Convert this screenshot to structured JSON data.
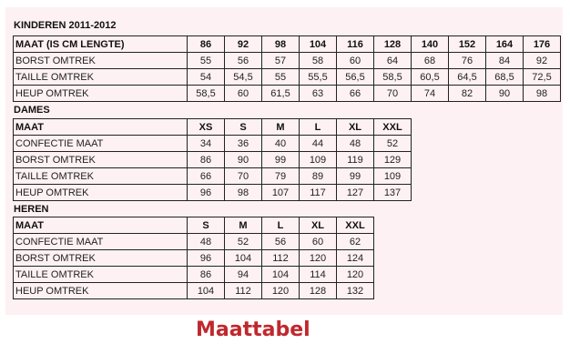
{
  "sections": [
    {
      "title": "KINDEREN 2011-2012",
      "header": [
        "MAAT (IS CM LENGTE)",
        "86",
        "92",
        "98",
        "104",
        "116",
        "128",
        "140",
        "152",
        "164",
        "176"
      ],
      "rows": [
        [
          "BORST OMTREK",
          "55",
          "56",
          "57",
          "58",
          "60",
          "64",
          "68",
          "76",
          "84",
          "92"
        ],
        [
          "TAILLE OMTREK",
          "54",
          "54,5",
          "55",
          "55,5",
          "56,5",
          "58,5",
          "60,5",
          "64,5",
          "68,5",
          "72,5"
        ],
        [
          "HEUP OMTREK",
          "58,5",
          "60",
          "61,5",
          "63",
          "66",
          "70",
          "74",
          "82",
          "90",
          "98"
        ]
      ]
    },
    {
      "title": "DAMES",
      "header": [
        "MAAT",
        "XS",
        "S",
        "M",
        "L",
        "XL",
        "XXL"
      ],
      "rows": [
        [
          "CONFECTIE MAAT",
          "34",
          "36",
          "40",
          "44",
          "48",
          "52"
        ],
        [
          "BORST OMTREK",
          "86",
          "90",
          "99",
          "109",
          "119",
          "129"
        ],
        [
          "TAILLE OMTREK",
          "66",
          "70",
          "79",
          "89",
          "99",
          "109"
        ],
        [
          "HEUP OMTREK",
          "96",
          "98",
          "107",
          "117",
          "127",
          "137"
        ]
      ]
    },
    {
      "title": "HEREN",
      "header": [
        "MAAT",
        "S",
        "M",
        "L",
        "XL",
        "XXL"
      ],
      "rows": [
        [
          "CONFECTIE MAAT",
          "48",
          "52",
          "56",
          "60",
          "62"
        ],
        [
          "BORST OMTREK",
          "96",
          "104",
          "112",
          "120",
          "124"
        ],
        [
          "TAILLE OMTREK",
          "86",
          "94",
          "104",
          "114",
          "120"
        ],
        [
          "HEUP OMTREK",
          "104",
          "112",
          "120",
          "128",
          "132"
        ]
      ]
    }
  ],
  "footer": "Maattabel",
  "colors": {
    "footer": "#c0282d",
    "background": "#fdf1f3"
  }
}
